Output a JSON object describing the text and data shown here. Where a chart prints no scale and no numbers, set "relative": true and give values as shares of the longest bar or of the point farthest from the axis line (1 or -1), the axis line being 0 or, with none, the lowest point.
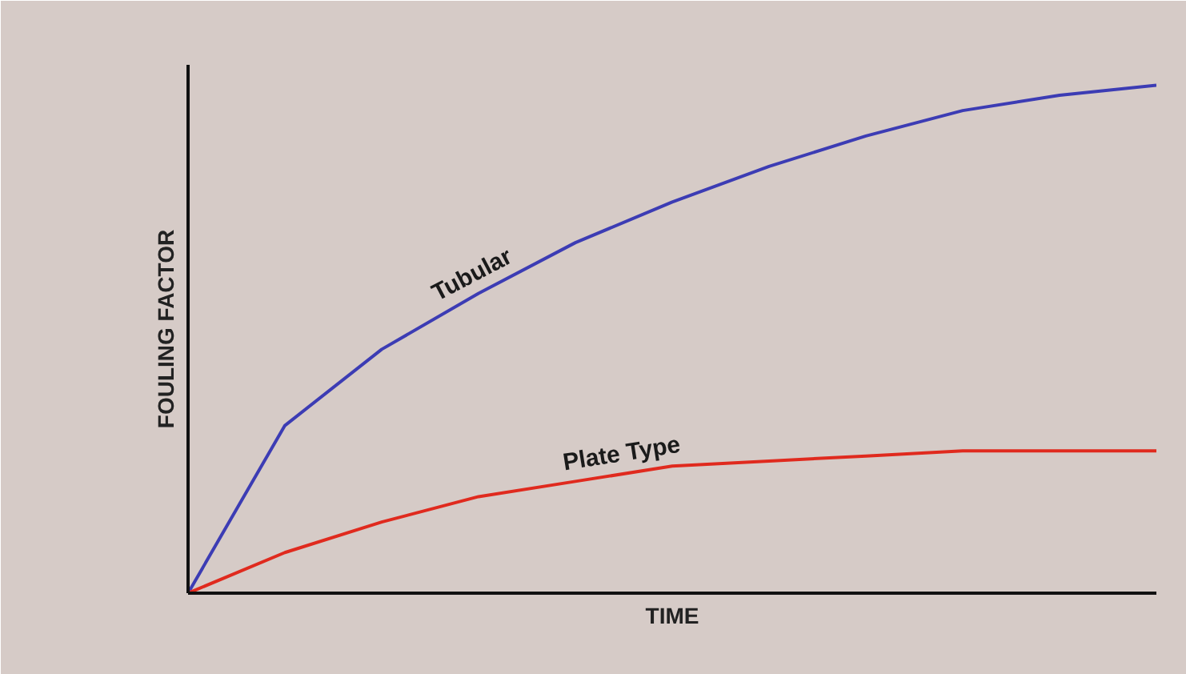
{
  "chart_data": {
    "type": "line",
    "relative": true,
    "xlabel": "TIME",
    "ylabel": "FOULING FACTOR",
    "categories": [
      null,
      null,
      null,
      null,
      null,
      null,
      null,
      null,
      null,
      null,
      null
    ],
    "series": [
      {
        "name": "Tubular",
        "color": "#3c3cb4",
        "values": [
          0,
          0.33,
          0.48,
          0.59,
          0.69,
          0.77,
          0.84,
          0.9,
          0.95,
          0.98,
          1
        ]
      },
      {
        "name": "Plate Type",
        "color": "#e02a1e",
        "values": [
          0,
          0.08,
          0.14,
          0.19,
          0.22,
          0.25,
          0.26,
          0.27,
          0.28,
          0.28,
          0.28
        ]
      }
    ],
    "marker": "none",
    "line_style": "solid"
  }
}
